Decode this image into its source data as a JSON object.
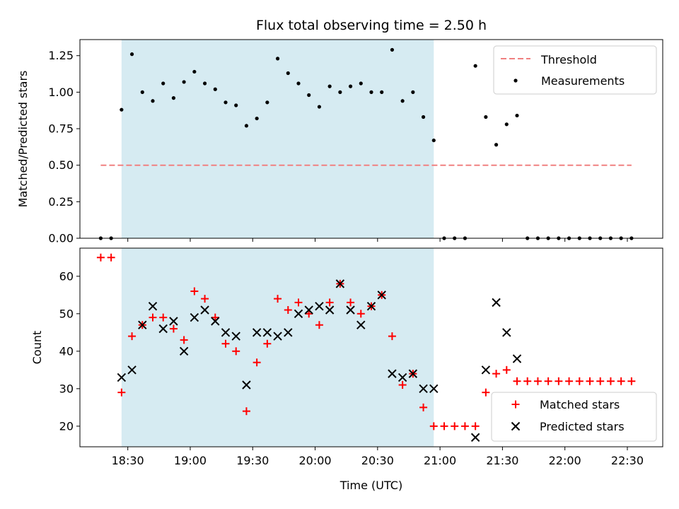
{
  "chart_data": [
    {
      "type": "scatter",
      "title": "Flux total observing time = 2.50 h",
      "xlabel": "",
      "ylabel": "Matched/Predicted stars",
      "ylim": [
        0,
        1.36
      ],
      "yticks": [
        0.0,
        0.25,
        0.5,
        0.75,
        1.0,
        1.25
      ],
      "yticklabels": [
        "0.00",
        "0.25",
        "0.50",
        "0.75",
        "1.00",
        "1.25"
      ],
      "legend_position": "top-right",
      "threshold": {
        "name": "Threshold",
        "value": 0.5,
        "x_start": "18:17",
        "x_end": "22:32",
        "color": "#f08080"
      },
      "measurements_name": "Measurements",
      "x": [
        "18:17",
        "18:22",
        "18:27",
        "18:32",
        "18:37",
        "18:42",
        "18:47",
        "18:52",
        "18:57",
        "19:02",
        "19:07",
        "19:12",
        "19:17",
        "19:22",
        "19:27",
        "19:32",
        "19:37",
        "19:42",
        "19:47",
        "19:52",
        "19:57",
        "20:02",
        "20:07",
        "20:12",
        "20:17",
        "20:22",
        "20:27",
        "20:32",
        "20:37",
        "20:42",
        "20:47",
        "20:52",
        "20:57",
        "21:02",
        "21:07",
        "21:12",
        "21:17",
        "21:22",
        "21:27",
        "21:32",
        "21:37",
        "21:42",
        "21:47",
        "21:52",
        "21:57",
        "22:02",
        "22:07",
        "22:12",
        "22:17",
        "22:22",
        "22:27",
        "22:32"
      ],
      "values": [
        0,
        0,
        0.88,
        1.26,
        1.0,
        0.94,
        1.06,
        0.96,
        1.07,
        1.14,
        1.06,
        1.02,
        0.93,
        0.91,
        0.77,
        0.82,
        0.93,
        1.23,
        1.13,
        1.06,
        0.98,
        0.9,
        1.04,
        1.0,
        1.04,
        1.06,
        1.0,
        1.0,
        1.29,
        0.94,
        1.0,
        0.83,
        0.67,
        0,
        0,
        0,
        1.18,
        0.83,
        0.64,
        0.78,
        0.84,
        0,
        0,
        0,
        0,
        0,
        0,
        0,
        0,
        0,
        0,
        0
      ]
    },
    {
      "type": "scatter",
      "title": "",
      "xlabel": "Time (UTC)",
      "ylabel": "Count",
      "ylim": [
        14.5,
        67.5
      ],
      "yticks": [
        20,
        30,
        40,
        50,
        60
      ],
      "yticklabels": [
        "20",
        "30",
        "40",
        "50",
        "60"
      ],
      "legend_position": "bottom-right",
      "series": [
        {
          "name": "Matched stars",
          "marker": "+",
          "color": "#ff0000",
          "x": [
            "18:17",
            "18:22",
            "18:27",
            "18:32",
            "18:37",
            "18:42",
            "18:47",
            "18:52",
            "18:57",
            "19:02",
            "19:07",
            "19:12",
            "19:17",
            "19:22",
            "19:27",
            "19:32",
            "19:37",
            "19:42",
            "19:47",
            "19:52",
            "19:57",
            "20:02",
            "20:07",
            "20:12",
            "20:17",
            "20:22",
            "20:27",
            "20:32",
            "20:37",
            "20:42",
            "20:47",
            "20:52",
            "20:57",
            "21:02",
            "21:07",
            "21:12",
            "21:17",
            "21:22",
            "21:27",
            "21:32",
            "21:37",
            "21:42",
            "21:47",
            "21:52",
            "21:57",
            "22:02",
            "22:07",
            "22:12",
            "22:17",
            "22:22",
            "22:27",
            "22:32"
          ],
          "values": [
            65,
            65,
            29,
            44,
            47,
            49,
            49,
            46,
            43,
            56,
            54,
            49,
            42,
            40,
            24,
            37,
            42,
            54,
            51,
            53,
            50,
            47,
            53,
            58,
            53,
            50,
            52,
            55,
            44,
            31,
            34,
            25,
            20,
            20,
            20,
            20,
            20,
            29,
            34,
            35,
            32,
            32,
            32,
            32,
            32,
            32,
            32,
            32,
            32,
            32,
            32,
            32
          ]
        },
        {
          "name": "Predicted stars",
          "marker": "x",
          "color": "#000000",
          "x": [
            "18:27",
            "18:32",
            "18:37",
            "18:42",
            "18:47",
            "18:52",
            "18:57",
            "19:02",
            "19:07",
            "19:12",
            "19:17",
            "19:22",
            "19:27",
            "19:32",
            "19:37",
            "19:42",
            "19:47",
            "19:52",
            "19:57",
            "20:02",
            "20:07",
            "20:12",
            "20:17",
            "20:22",
            "20:27",
            "20:32",
            "20:37",
            "20:42",
            "20:47",
            "20:52",
            "20:57",
            "21:17",
            "21:22",
            "21:27",
            "21:32",
            "21:37"
          ],
          "values": [
            33,
            35,
            47,
            52,
            46,
            48,
            40,
            49,
            51,
            48,
            45,
            44,
            31,
            45,
            45,
            44,
            45,
            50,
            51,
            52,
            51,
            58,
            51,
            47,
            52,
            55,
            34,
            33,
            34,
            30,
            30,
            17,
            35,
            53,
            45,
            38
          ]
        }
      ]
    }
  ],
  "x_axis": {
    "range": [
      "18:07",
      "22:47"
    ],
    "ticks": [
      "18:30",
      "19:00",
      "19:30",
      "20:00",
      "20:30",
      "21:00",
      "21:30",
      "22:00",
      "22:30"
    ],
    "observing_window": [
      "18:27",
      "20:57"
    ],
    "window_color": "#add8e6"
  }
}
